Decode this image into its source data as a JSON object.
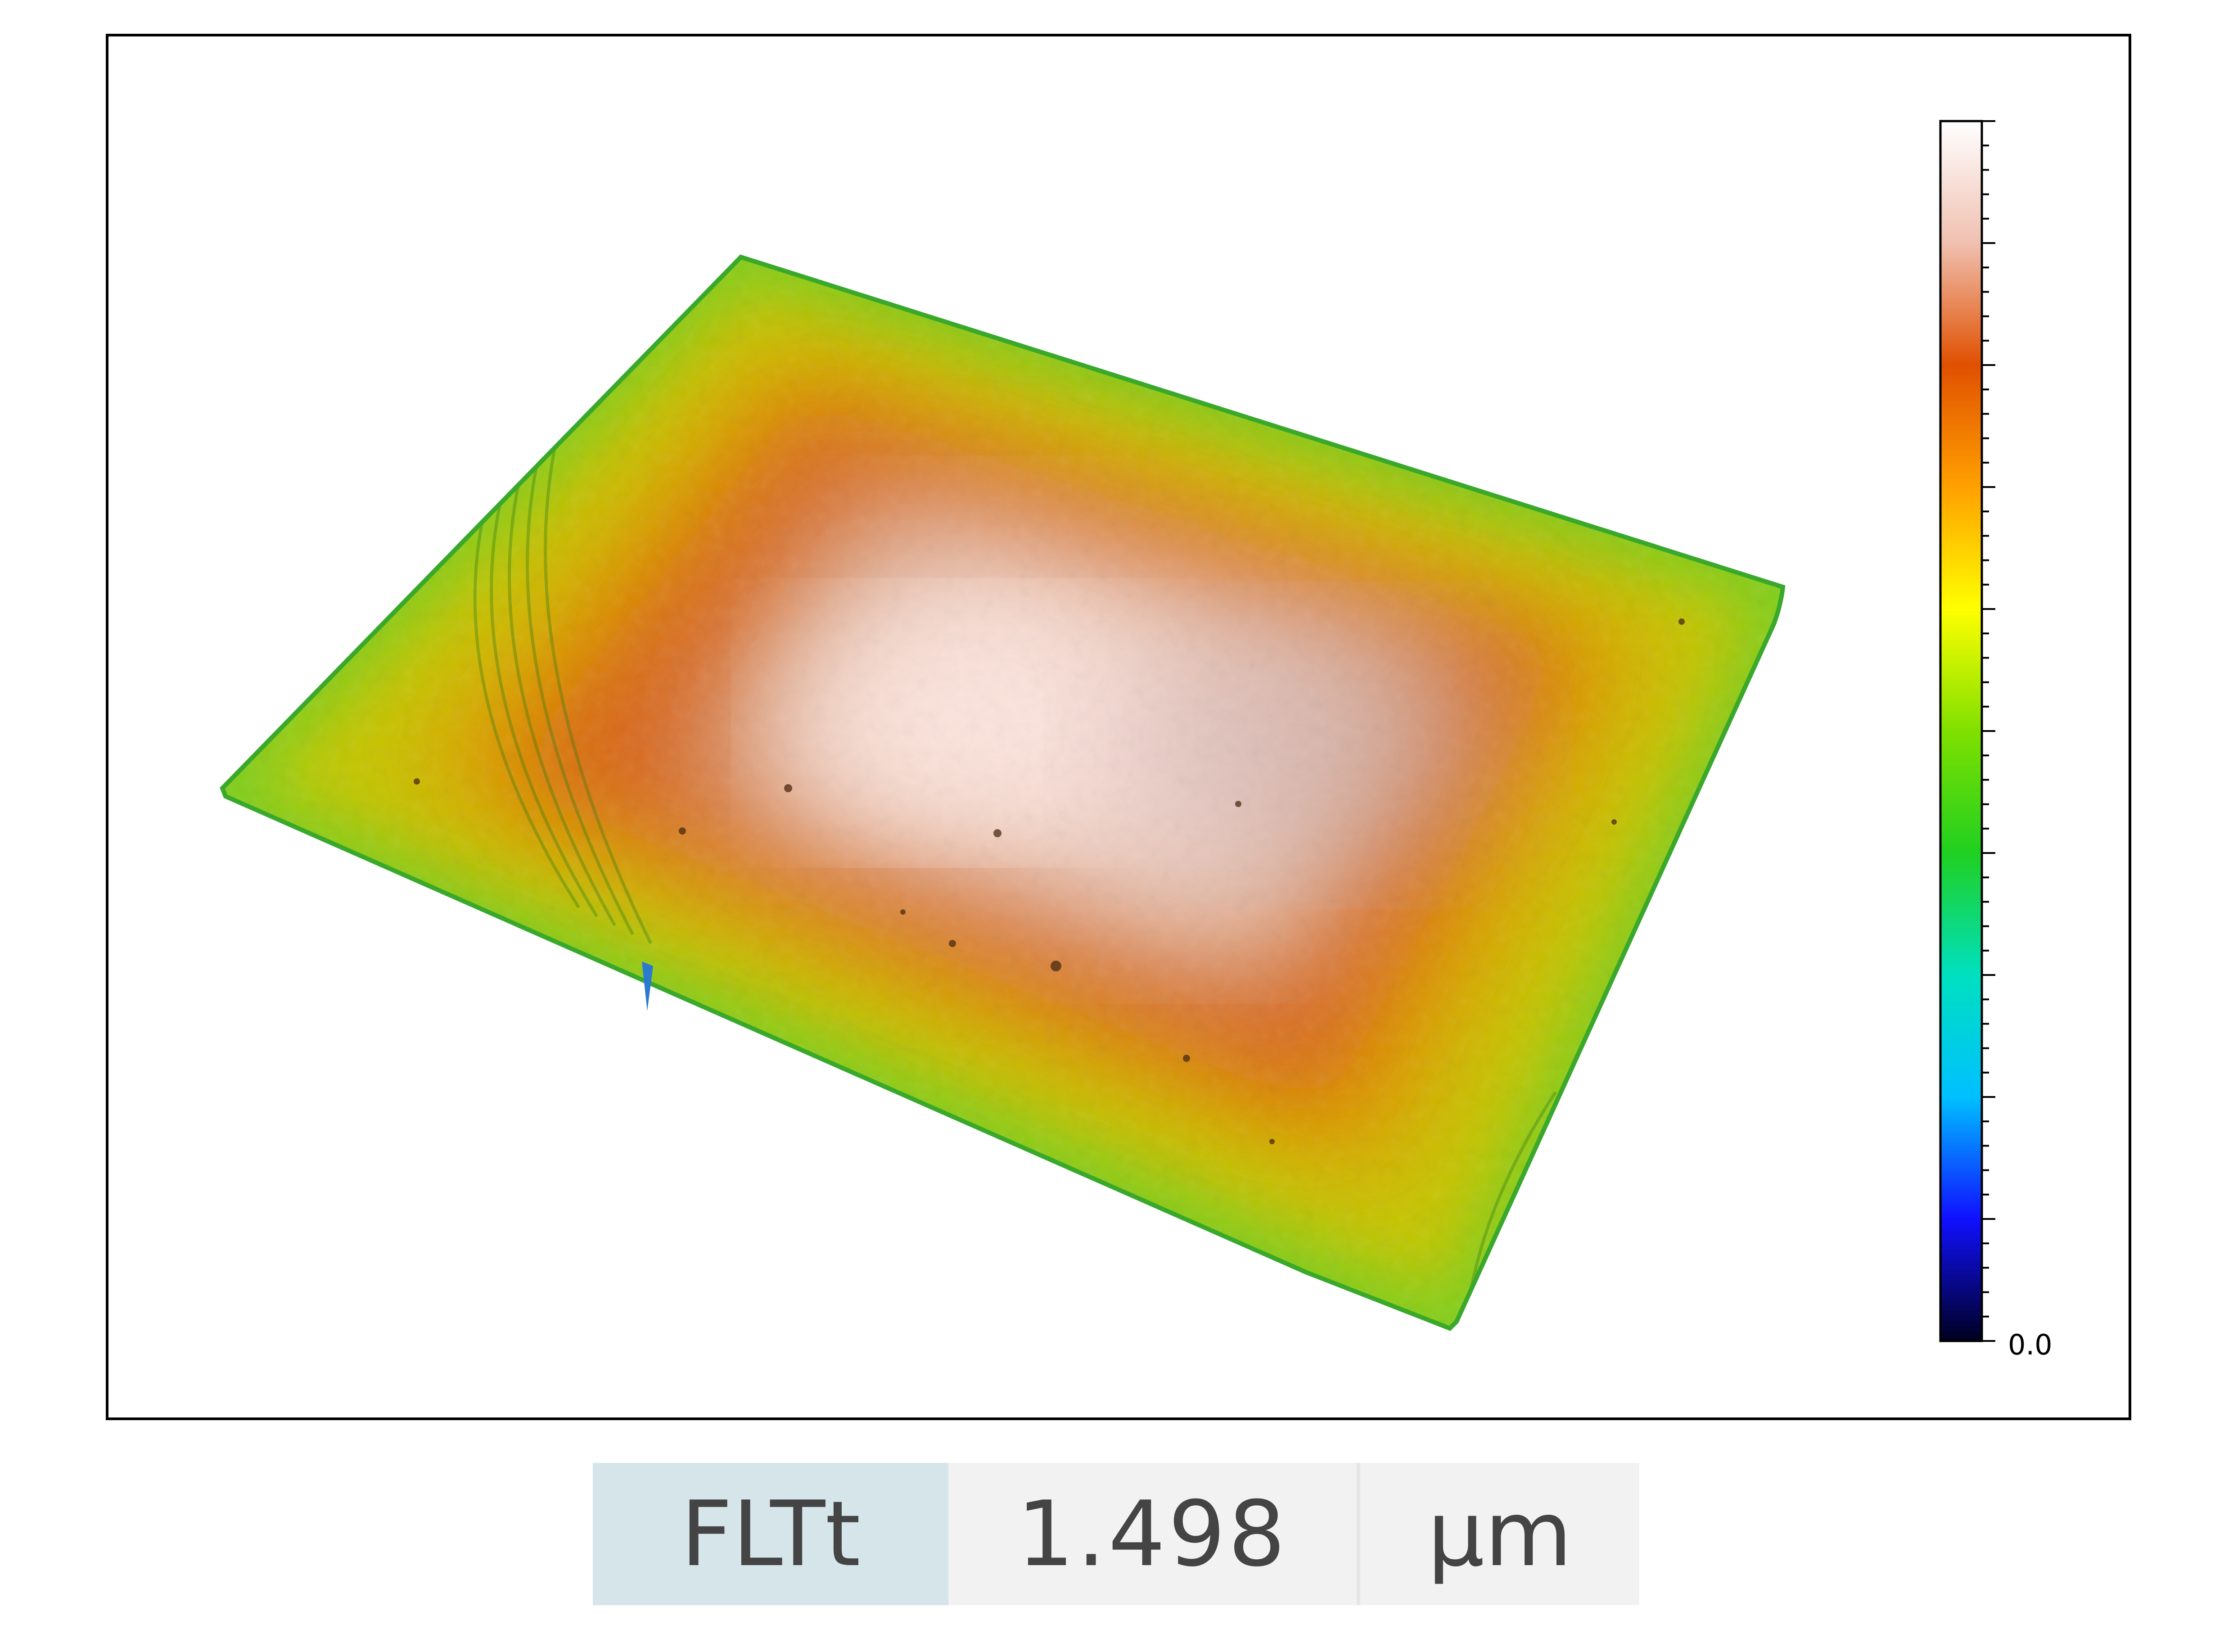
{
  "chart_data": {
    "type": "heatmap",
    "view": "3d-surface",
    "colormap": [
      "#000020",
      "#1010ff",
      "#00c0ff",
      "#00e0c0",
      "#20d020",
      "#80e000",
      "#ffff00",
      "#ffa000",
      "#e05000",
      "#f0c0b0",
      "#ffffff"
    ],
    "colorbar": {
      "min_label": "0.0",
      "min": 0.0
    }
  },
  "results": {
    "parameter": "FLTt",
    "value": "1.498",
    "unit": "µm"
  }
}
